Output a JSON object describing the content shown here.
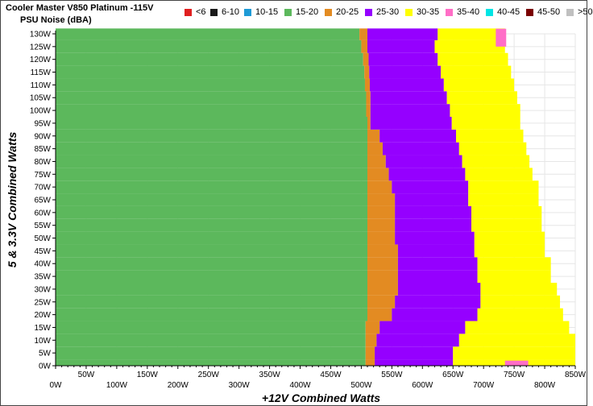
{
  "chart_data": {
    "type": "heatmap",
    "title": "Cooler Master V850 Platinum -115V",
    "subtitle": "PSU Noise (dBA)",
    "xlabel": "+12V Combined Watts",
    "ylabel": "5 & 3.3V Combined Watts",
    "xlim": [
      0,
      850
    ],
    "ylim": [
      0,
      130
    ],
    "x_ticks": [
      "0W",
      "50W",
      "100W",
      "150W",
      "200W",
      "250W",
      "300W",
      "350W",
      "400W",
      "450W",
      "500W",
      "550W",
      "600W",
      "650W",
      "700W",
      "750W",
      "800W",
      "850W"
    ],
    "y_ticks": [
      "0W",
      "5W",
      "10W",
      "15W",
      "20W",
      "25W",
      "30W",
      "35W",
      "40W",
      "45W",
      "50W",
      "55W",
      "60W",
      "65W",
      "70W",
      "75W",
      "80W",
      "85W",
      "90W",
      "95W",
      "100W",
      "105W",
      "110W",
      "115W",
      "120W",
      "125W",
      "130W"
    ],
    "legend": [
      {
        "label": "<6",
        "color": "#e02020"
      },
      {
        "label": "6-10",
        "color": "#1a1a1a"
      },
      {
        "label": "10-15",
        "color": "#1e9ad6"
      },
      {
        "label": "15-20",
        "color": "#5cb85c"
      },
      {
        "label": "20-25",
        "color": "#e38b22"
      },
      {
        "label": "25-30",
        "color": "#9500ff"
      },
      {
        "label": "30-35",
        "color": "#ffff00"
      },
      {
        "label": "35-40",
        "color": "#ff6ec7"
      },
      {
        "label": "40-45",
        "color": "#00e5e5"
      },
      {
        "label": "45-50",
        "color": "#7a0000"
      },
      {
        "label": ">50",
        "color": "#c0c0c0"
      }
    ],
    "grid": true,
    "legend_position": "top",
    "zone_boundaries_note": "",
    "y_values": [
      0,
      5,
      10,
      15,
      20,
      25,
      30,
      35,
      40,
      45,
      50,
      55,
      60,
      65,
      70,
      75,
      80,
      85,
      90,
      95,
      100,
      105,
      110,
      115,
      120,
      125,
      130
    ],
    "boundary_15_20_to_20_25": [
      507,
      507,
      507,
      507,
      510,
      510,
      510,
      510,
      510,
      510,
      510,
      510,
      510,
      510,
      510,
      510,
      510,
      510,
      510,
      510,
      508,
      508,
      506,
      505,
      503,
      500,
      497
    ],
    "boundary_20_25_to_25_30": [
      522,
      522,
      525,
      530,
      550,
      555,
      560,
      560,
      560,
      560,
      555,
      555,
      555,
      555,
      550,
      545,
      540,
      535,
      530,
      515,
      515,
      515,
      514,
      513,
      512,
      510,
      510
    ],
    "boundary_25_30_to_30_35": [
      650,
      650,
      660,
      670,
      690,
      695,
      695,
      690,
      690,
      685,
      685,
      680,
      680,
      675,
      675,
      670,
      665,
      660,
      655,
      648,
      645,
      640,
      635,
      630,
      625,
      620,
      625
    ],
    "boundary_30_35_end": [
      860,
      850,
      850,
      840,
      830,
      825,
      820,
      810,
      810,
      800,
      800,
      795,
      795,
      790,
      790,
      780,
      775,
      770,
      765,
      760,
      760,
      755,
      750,
      745,
      740,
      735,
      735
    ],
    "pink_regions": [
      {
        "y_from": 0,
        "y_to": 2,
        "x_from": 735,
        "x_to": 773
      },
      {
        "y_from": 125,
        "y_to": 132,
        "x_from": 720,
        "x_to": 737
      }
    ]
  }
}
